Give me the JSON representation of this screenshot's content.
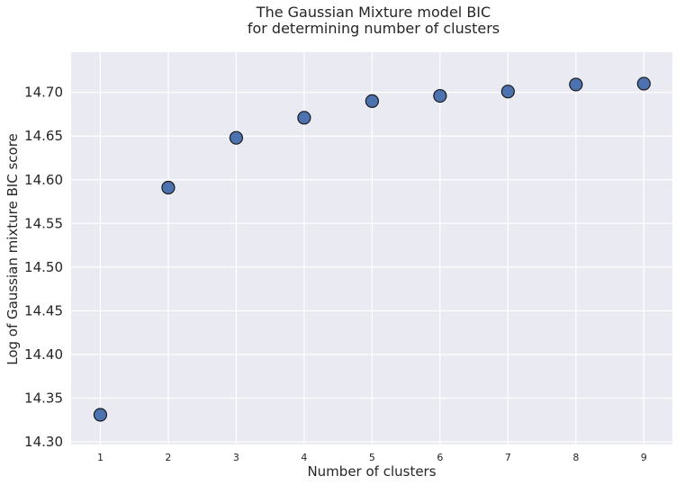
{
  "chart_data": {
    "type": "scatter",
    "title_lines": [
      "The Gaussian Mixture model BIC",
      "for determining number of clusters"
    ],
    "xlabel": "Number of clusters",
    "ylabel": "Log of Gaussian mixture BIC score",
    "x": [
      1,
      2,
      3,
      4,
      5,
      6,
      7,
      8,
      9
    ],
    "y": [
      14.331,
      14.591,
      14.648,
      14.671,
      14.69,
      14.696,
      14.701,
      14.709,
      14.71
    ],
    "xticks": [
      "1",
      "2",
      "3",
      "4",
      "5",
      "6",
      "7",
      "8",
      "9"
    ],
    "yticks": [
      "14.30",
      "14.35",
      "14.40",
      "14.45",
      "14.50",
      "14.55",
      "14.60",
      "14.65",
      "14.70"
    ],
    "xlim": [
      0.57,
      9.42
    ],
    "ylim": [
      14.297,
      14.746
    ],
    "grid": true,
    "colors": {
      "background": "#eaeaf2",
      "grid": "#ffffff",
      "point_fill": "#4c72b0",
      "point_edge": "#1a1a1a"
    }
  }
}
